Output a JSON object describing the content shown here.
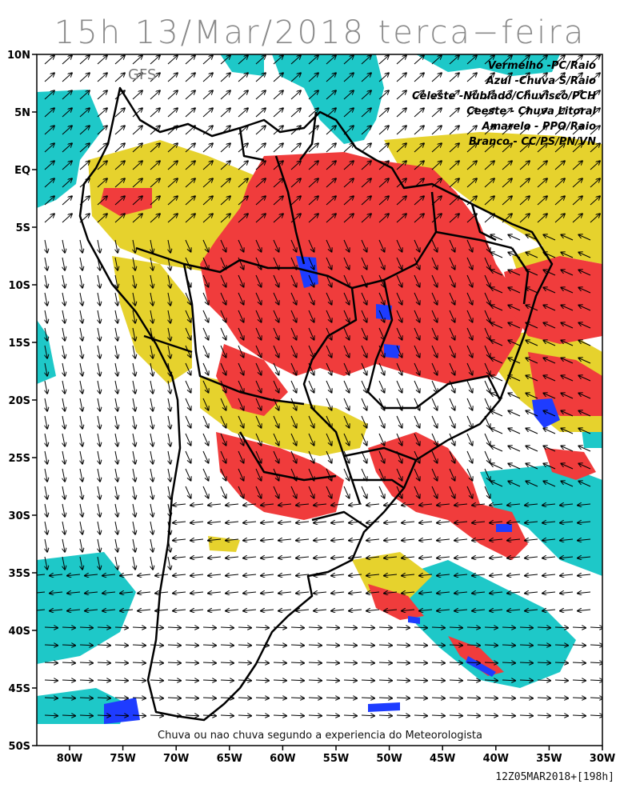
{
  "title": "15h 13/Mar/2018 terca−feira",
  "model": "GFS",
  "legend": [
    {
      "text": "Vermelho -PC/Raio",
      "color": "#f03c3c"
    },
    {
      "text": "Azul -Chuva S/Raio",
      "color": "#1e3cff"
    },
    {
      "text": "Celeste -Nublado/Chuvisco/PCH",
      "color": "#1ec8c8"
    },
    {
      "text": "Ceeste - Chuva Litoral",
      "color": "#1ec8c8"
    },
    {
      "text": "Amarelo - PPO/Raio",
      "color": "#e6d22d"
    },
    {
      "text": "Branco - CC/PS/PN/VN",
      "color": "#ffffff"
    }
  ],
  "caption": "Chuva ou nao chuva segundo a experiencia do Meteorologista",
  "run_info": "12Z05MAR2018+[198h]",
  "lat_labels": [
    "10N",
    "5N",
    "EQ",
    "5S",
    "10S",
    "15S",
    "20S",
    "25S",
    "30S",
    "35S",
    "40S",
    "45S",
    "50S"
  ],
  "lon_labels": [
    "80W",
    "75W",
    "70W",
    "65W",
    "60W",
    "55W",
    "50W",
    "45W",
    "40W",
    "35W",
    "30W"
  ],
  "colors": {
    "red": "#f03c3c",
    "yellow": "#e6d22d",
    "cyan": "#1ec8c8",
    "blue": "#1e3cff",
    "border": "#000000"
  }
}
